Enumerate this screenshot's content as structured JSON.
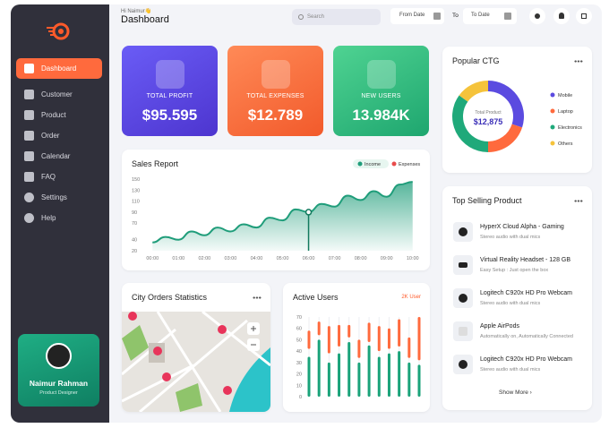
{
  "sidebar": {
    "menu": [
      "Dashboard",
      "Customer",
      "Product",
      "Order",
      "Calendar",
      "FAQ",
      "Settings",
      "Help"
    ],
    "profile": {
      "name": "Naimur Rahman",
      "role": "Product Designer"
    }
  },
  "header": {
    "greeting": "Hi Naimur👋",
    "title": "Dashboard",
    "search": "Search",
    "from_date": "From Date",
    "to": "To",
    "to_date": "To Date"
  },
  "stats": [
    {
      "label": "TOTAL PROFIT",
      "value": "$95.595"
    },
    {
      "label": "TOTAL EXPENSES",
      "value": "$12.789"
    },
    {
      "label": "NEW USERS",
      "value": "13.984K"
    }
  ],
  "chart_data": [
    {
      "type": "area",
      "title": "Sales Report",
      "legend": [
        {
          "name": "Income",
          "color": "#1f9d7a"
        },
        {
          "name": "Expenses",
          "color": "#e84b4b"
        }
      ],
      "x": [
        0,
        0.5,
        1,
        1.5,
        2,
        2.5,
        3,
        3.5,
        4,
        4.5,
        5,
        5.5,
        6,
        6.5,
        7,
        7.5,
        8,
        8.5,
        9,
        9.5,
        10
      ],
      "values": [
        35,
        45,
        40,
        55,
        48,
        62,
        55,
        68,
        62,
        80,
        75,
        95,
        90,
        105,
        100,
        120,
        112,
        128,
        118,
        140,
        145
      ],
      "color": "#1f9d7a",
      "xlim": [
        -0.25,
        10.25
      ],
      "xticks": [
        {
          "value": 0,
          "label": "00:00"
        },
        {
          "value": 1,
          "label": "01:00"
        },
        {
          "value": 2,
          "label": "02:00"
        },
        {
          "value": 3,
          "label": "03:00"
        },
        {
          "value": 4,
          "label": "04:00"
        },
        {
          "value": 5,
          "label": "05:00"
        },
        {
          "value": 6,
          "label": "06:00"
        },
        {
          "value": 7,
          "label": "07:00"
        },
        {
          "value": 8,
          "label": "08:00"
        },
        {
          "value": 9,
          "label": "09:00"
        },
        {
          "value": 10,
          "label": "10:00"
        }
      ],
      "ylim": [
        20,
        150
      ],
      "yticks": [
        150,
        130,
        110,
        90,
        70,
        40,
        20
      ],
      "highlight": 12
    },
    {
      "type": "donut",
      "title": "Popular CTG",
      "categories": [
        "Mobile",
        "Laptop",
        "Electronics",
        "Others"
      ],
      "values": [
        30,
        20,
        35,
        15
      ],
      "colors": [
        "#5b4be0",
        "#ff6a3d",
        "#1fa97a",
        "#f5c33b"
      ],
      "center_label": "Total Product",
      "center_value": "$12,875"
    },
    {
      "type": "range_bar",
      "title": "Active Users",
      "subtitle": "2K User",
      "ylim": [
        0,
        70
      ],
      "yticks": [
        0,
        10,
        20,
        30,
        40,
        50,
        60,
        70
      ],
      "series": [
        {
          "color": "#1aa37a",
          "values": [
            35,
            50,
            30,
            38,
            48,
            30,
            45,
            35,
            38,
            40,
            30,
            28
          ]
        },
        {
          "color": "#ff6a3d",
          "ranges": [
            [
              42,
              58
            ],
            [
              54,
              66
            ],
            [
              38,
              62
            ],
            [
              44,
              63
            ],
            [
              52,
              63
            ],
            [
              34,
              50
            ],
            [
              48,
              65
            ],
            [
              40,
              62
            ],
            [
              42,
              60
            ],
            [
              44,
              68
            ],
            [
              34,
              52
            ],
            [
              32,
              70
            ]
          ]
        }
      ]
    }
  ],
  "top_selling": {
    "title": "Top Selling Product",
    "items": [
      {
        "name": "HyperX Cloud Alpha - Gaming",
        "desc": "Stereo audio with dual mics"
      },
      {
        "name": "Virtual Reality Headset - 128 GB",
        "desc": "Easy Setup : Just open the box"
      },
      {
        "name": "Logitech C920x HD Pro Webcam",
        "desc": "Stereo audio with dual mics"
      },
      {
        "name": "Apple AirPods",
        "desc": "Automatically on, Automatically Connected"
      },
      {
        "name": "Logitech C920x HD Pro Webcam",
        "desc": "Stereo audio with dual mics"
      }
    ],
    "more": "Show More"
  },
  "city_orders": {
    "title": "City Orders Statistics"
  }
}
